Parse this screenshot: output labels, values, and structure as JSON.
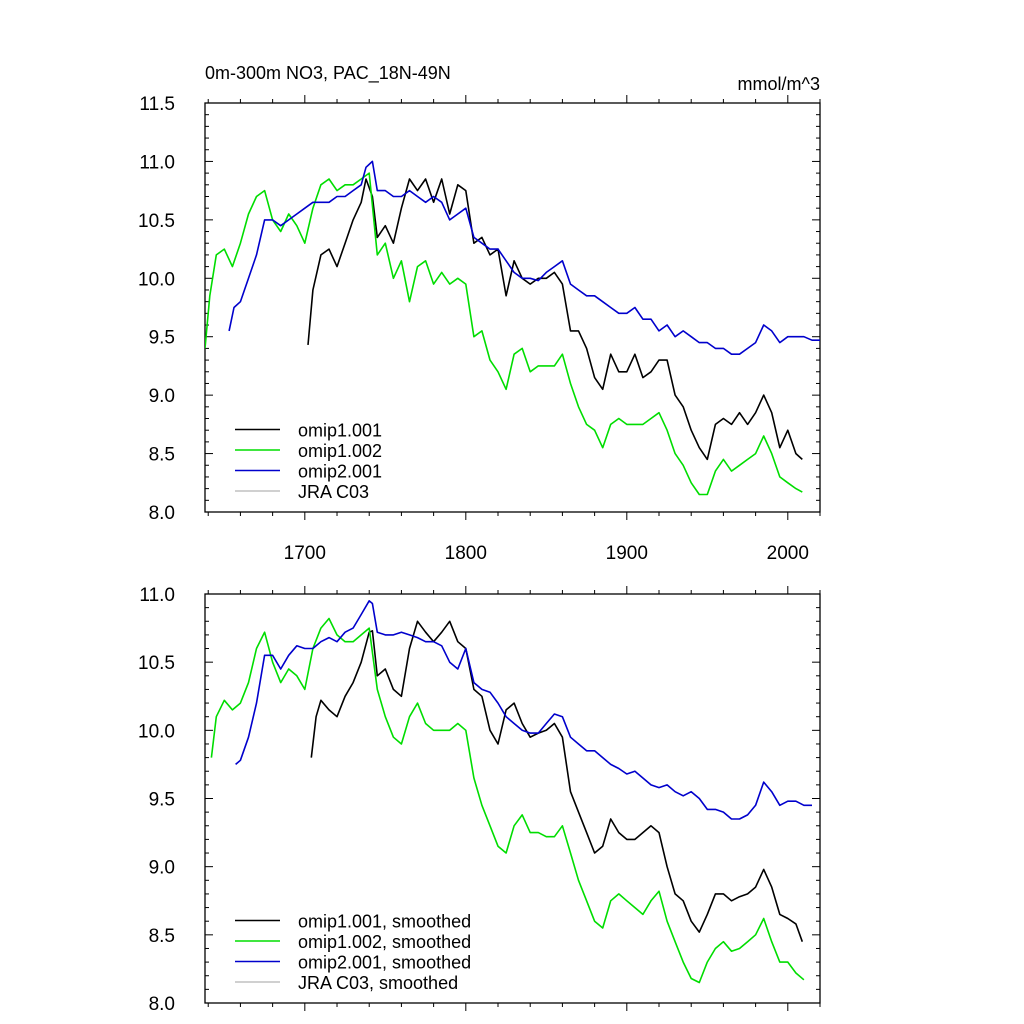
{
  "chart_data": [
    {
      "type": "line",
      "title": "0m-300m NO3, PAC_18N-49N",
      "units": "mmol/m^3",
      "xlim": [
        1638,
        2020
      ],
      "ylim": [
        8.0,
        11.5
      ],
      "yticks": [
        "8.0",
        "8.5",
        "9.0",
        "9.5",
        "10.0",
        "10.5",
        "11.0",
        "11.5"
      ],
      "xticks": [
        "1700",
        "1800",
        "1900",
        "2000"
      ],
      "legend_position": "bottom-left",
      "series": [
        {
          "name": "omip1.001",
          "color": "#000000",
          "x": [
            1702,
            1705,
            1710,
            1715,
            1720,
            1725,
            1730,
            1735,
            1738,
            1742,
            1745,
            1750,
            1755,
            1760,
            1765,
            1770,
            1775,
            1780,
            1785,
            1790,
            1795,
            1800,
            1805,
            1810,
            1815,
            1820,
            1825,
            1830,
            1835,
            1840,
            1845,
            1850,
            1855,
            1860,
            1865,
            1870,
            1875,
            1880,
            1885,
            1890,
            1895,
            1900,
            1905,
            1910,
            1915,
            1920,
            1925,
            1930,
            1935,
            1940,
            1945,
            1950,
            1955,
            1960,
            1965,
            1970,
            1975,
            1980,
            1985,
            1990,
            1995,
            2000,
            2005,
            2009
          ],
          "y": [
            9.43,
            9.9,
            10.2,
            10.25,
            10.1,
            10.3,
            10.5,
            10.65,
            10.85,
            10.7,
            10.35,
            10.45,
            10.3,
            10.6,
            10.85,
            10.75,
            10.85,
            10.65,
            10.85,
            10.55,
            10.8,
            10.75,
            10.3,
            10.35,
            10.2,
            10.25,
            9.85,
            10.15,
            10.0,
            9.95,
            10.0,
            10.0,
            10.05,
            9.95,
            9.55,
            9.55,
            9.4,
            9.15,
            9.05,
            9.35,
            9.2,
            9.2,
            9.35,
            9.15,
            9.2,
            9.3,
            9.3,
            9.0,
            8.9,
            8.7,
            8.55,
            8.45,
            8.75,
            8.8,
            8.75,
            8.85,
            8.75,
            8.85,
            9.0,
            8.85,
            8.55,
            8.7,
            8.5,
            8.45
          ]
        },
        {
          "name": "omip1.002",
          "color": "#00dd00",
          "x": [
            1638,
            1641,
            1645,
            1650,
            1655,
            1660,
            1665,
            1670,
            1675,
            1680,
            1685,
            1690,
            1695,
            1700,
            1705,
            1710,
            1715,
            1720,
            1725,
            1730,
            1735,
            1740,
            1745,
            1750,
            1755,
            1760,
            1765,
            1770,
            1775,
            1780,
            1785,
            1790,
            1795,
            1800,
            1805,
            1810,
            1815,
            1820,
            1825,
            1830,
            1835,
            1840,
            1845,
            1850,
            1855,
            1860,
            1865,
            1870,
            1875,
            1880,
            1885,
            1890,
            1895,
            1900,
            1905,
            1910,
            1915,
            1920,
            1925,
            1930,
            1935,
            1940,
            1945,
            1950,
            1955,
            1960,
            1965,
            1970,
            1975,
            1980,
            1985,
            1990,
            1995,
            2000,
            2005,
            2009
          ],
          "y": [
            9.4,
            9.85,
            10.2,
            10.25,
            10.1,
            10.3,
            10.55,
            10.7,
            10.75,
            10.5,
            10.4,
            10.55,
            10.45,
            10.3,
            10.6,
            10.8,
            10.85,
            10.75,
            10.8,
            10.8,
            10.85,
            10.9,
            10.2,
            10.3,
            10.0,
            10.15,
            9.8,
            10.1,
            10.15,
            9.95,
            10.05,
            9.95,
            10.0,
            9.95,
            9.5,
            9.55,
            9.3,
            9.2,
            9.05,
            9.35,
            9.4,
            9.2,
            9.25,
            9.25,
            9.25,
            9.35,
            9.1,
            8.9,
            8.75,
            8.7,
            8.55,
            8.75,
            8.8,
            8.75,
            8.75,
            8.75,
            8.8,
            8.85,
            8.7,
            8.5,
            8.4,
            8.25,
            8.15,
            8.15,
            8.35,
            8.45,
            8.35,
            8.4,
            8.45,
            8.5,
            8.65,
            8.5,
            8.3,
            8.25,
            8.2,
            8.17
          ]
        },
        {
          "name": "omip2.001",
          "color": "#0000cc",
          "x": [
            1653,
            1656,
            1660,
            1665,
            1670,
            1675,
            1680,
            1685,
            1690,
            1695,
            1700,
            1705,
            1710,
            1715,
            1720,
            1725,
            1730,
            1735,
            1738,
            1742,
            1745,
            1750,
            1755,
            1760,
            1765,
            1770,
            1775,
            1780,
            1785,
            1790,
            1795,
            1800,
            1805,
            1810,
            1815,
            1820,
            1825,
            1830,
            1835,
            1840,
            1845,
            1850,
            1855,
            1860,
            1865,
            1870,
            1875,
            1880,
            1885,
            1890,
            1895,
            1900,
            1905,
            1910,
            1915,
            1920,
            1925,
            1930,
            1935,
            1940,
            1945,
            1950,
            1955,
            1960,
            1965,
            1970,
            1975,
            1980,
            1985,
            1990,
            1995,
            2000,
            2005,
            2010,
            2015,
            2020
          ],
          "y": [
            9.55,
            9.75,
            9.8,
            10.0,
            10.2,
            10.5,
            10.5,
            10.45,
            10.5,
            10.55,
            10.6,
            10.65,
            10.65,
            10.65,
            10.7,
            10.7,
            10.75,
            10.8,
            10.95,
            11.0,
            10.75,
            10.75,
            10.7,
            10.7,
            10.75,
            10.7,
            10.65,
            10.7,
            10.65,
            10.5,
            10.55,
            10.6,
            10.35,
            10.3,
            10.25,
            10.25,
            10.15,
            10.05,
            10.0,
            10.0,
            9.98,
            10.05,
            10.1,
            10.15,
            9.95,
            9.9,
            9.85,
            9.85,
            9.8,
            9.75,
            9.7,
            9.7,
            9.75,
            9.65,
            9.65,
            9.55,
            9.6,
            9.5,
            9.55,
            9.5,
            9.45,
            9.45,
            9.4,
            9.4,
            9.35,
            9.35,
            9.4,
            9.45,
            9.6,
            9.55,
            9.45,
            9.5,
            9.5,
            9.5,
            9.47,
            9.47
          ]
        },
        {
          "name": "JRA C03",
          "color": "#c0c0c0",
          "x": [],
          "y": []
        }
      ]
    },
    {
      "type": "line",
      "title": "",
      "xlim": [
        1638,
        2020
      ],
      "ylim": [
        8.0,
        11.0
      ],
      "yticks": [
        "8.0",
        "8.5",
        "9.0",
        "9.5",
        "10.0",
        "10.5",
        "11.0"
      ],
      "xticks": [],
      "legend_position": "bottom-left",
      "series": [
        {
          "name": "omip1.001, smoothed",
          "color": "#000000",
          "x": [
            1704,
            1707,
            1710,
            1715,
            1720,
            1725,
            1730,
            1735,
            1740,
            1742,
            1745,
            1750,
            1755,
            1760,
            1765,
            1770,
            1775,
            1780,
            1785,
            1790,
            1795,
            1800,
            1805,
            1810,
            1815,
            1820,
            1825,
            1830,
            1835,
            1840,
            1845,
            1850,
            1855,
            1860,
            1865,
            1870,
            1875,
            1880,
            1885,
            1890,
            1895,
            1900,
            1905,
            1910,
            1915,
            1920,
            1925,
            1930,
            1935,
            1940,
            1945,
            1950,
            1955,
            1960,
            1965,
            1970,
            1975,
            1980,
            1985,
            1990,
            1995,
            2000,
            2005,
            2009
          ],
          "y": [
            9.8,
            10.1,
            10.22,
            10.15,
            10.1,
            10.25,
            10.35,
            10.5,
            10.72,
            10.73,
            10.4,
            10.45,
            10.3,
            10.25,
            10.6,
            10.8,
            10.72,
            10.65,
            10.72,
            10.8,
            10.65,
            10.6,
            10.3,
            10.25,
            10.0,
            9.9,
            10.15,
            10.2,
            10.05,
            9.95,
            9.98,
            10.0,
            10.05,
            9.95,
            9.55,
            9.4,
            9.25,
            9.1,
            9.15,
            9.35,
            9.25,
            9.2,
            9.2,
            9.25,
            9.3,
            9.25,
            9.0,
            8.8,
            8.75,
            8.6,
            8.52,
            8.65,
            8.8,
            8.8,
            8.75,
            8.78,
            8.8,
            8.85,
            8.98,
            8.85,
            8.65,
            8.62,
            8.58,
            8.45
          ]
        },
        {
          "name": "omip1.002, smoothed",
          "color": "#00dd00",
          "x": [
            1642,
            1645,
            1650,
            1655,
            1660,
            1665,
            1670,
            1675,
            1680,
            1685,
            1690,
            1695,
            1700,
            1705,
            1710,
            1715,
            1720,
            1725,
            1730,
            1735,
            1740,
            1745,
            1750,
            1755,
            1760,
            1765,
            1770,
            1775,
            1780,
            1785,
            1790,
            1795,
            1800,
            1805,
            1810,
            1815,
            1820,
            1825,
            1830,
            1835,
            1840,
            1845,
            1850,
            1855,
            1860,
            1865,
            1870,
            1875,
            1880,
            1885,
            1890,
            1895,
            1900,
            1905,
            1910,
            1915,
            1920,
            1925,
            1930,
            1935,
            1940,
            1945,
            1950,
            1955,
            1960,
            1965,
            1970,
            1975,
            1980,
            1985,
            1990,
            1995,
            2000,
            2005,
            2010
          ],
          "y": [
            9.8,
            10.1,
            10.22,
            10.15,
            10.2,
            10.35,
            10.6,
            10.72,
            10.5,
            10.35,
            10.45,
            10.4,
            10.3,
            10.6,
            10.75,
            10.82,
            10.7,
            10.65,
            10.65,
            10.7,
            10.75,
            10.3,
            10.1,
            9.95,
            9.9,
            10.1,
            10.2,
            10.05,
            10.0,
            10.0,
            10.0,
            10.05,
            10.0,
            9.65,
            9.45,
            9.3,
            9.15,
            9.1,
            9.3,
            9.38,
            9.25,
            9.25,
            9.22,
            9.22,
            9.3,
            9.1,
            8.9,
            8.75,
            8.6,
            8.55,
            8.75,
            8.8,
            8.75,
            8.7,
            8.65,
            8.75,
            8.82,
            8.6,
            8.45,
            8.3,
            8.18,
            8.15,
            8.3,
            8.4,
            8.45,
            8.38,
            8.4,
            8.45,
            8.5,
            8.62,
            8.45,
            8.3,
            8.3,
            8.22,
            8.17
          ]
        },
        {
          "name": "omip2.001, smoothed",
          "color": "#0000cc",
          "x": [
            1657,
            1660,
            1665,
            1670,
            1675,
            1680,
            1685,
            1690,
            1695,
            1700,
            1705,
            1710,
            1715,
            1720,
            1725,
            1730,
            1735,
            1740,
            1742,
            1745,
            1750,
            1755,
            1760,
            1765,
            1770,
            1775,
            1780,
            1785,
            1790,
            1795,
            1800,
            1805,
            1810,
            1815,
            1820,
            1825,
            1830,
            1835,
            1840,
            1845,
            1850,
            1855,
            1860,
            1865,
            1870,
            1875,
            1880,
            1885,
            1890,
            1895,
            1900,
            1905,
            1910,
            1915,
            1920,
            1925,
            1930,
            1935,
            1940,
            1945,
            1950,
            1955,
            1960,
            1965,
            1970,
            1975,
            1980,
            1985,
            1990,
            1995,
            2000,
            2005,
            2010,
            2015
          ],
          "y": [
            9.75,
            9.78,
            9.95,
            10.2,
            10.55,
            10.55,
            10.45,
            10.55,
            10.62,
            10.6,
            10.6,
            10.65,
            10.68,
            10.65,
            10.72,
            10.75,
            10.85,
            10.95,
            10.93,
            10.72,
            10.7,
            10.7,
            10.72,
            10.7,
            10.68,
            10.65,
            10.65,
            10.62,
            10.5,
            10.45,
            10.6,
            10.35,
            10.3,
            10.28,
            10.2,
            10.1,
            10.05,
            10.0,
            9.98,
            9.98,
            10.05,
            10.12,
            10.1,
            9.95,
            9.9,
            9.85,
            9.85,
            9.8,
            9.75,
            9.72,
            9.68,
            9.7,
            9.65,
            9.6,
            9.58,
            9.6,
            9.55,
            9.52,
            9.55,
            9.5,
            9.42,
            9.42,
            9.4,
            9.35,
            9.35,
            9.38,
            9.45,
            9.62,
            9.55,
            9.45,
            9.48,
            9.48,
            9.45,
            9.45
          ]
        },
        {
          "name": "JRA C03, smoothed",
          "color": "#c0c0c0",
          "x": [],
          "y": []
        }
      ]
    }
  ]
}
